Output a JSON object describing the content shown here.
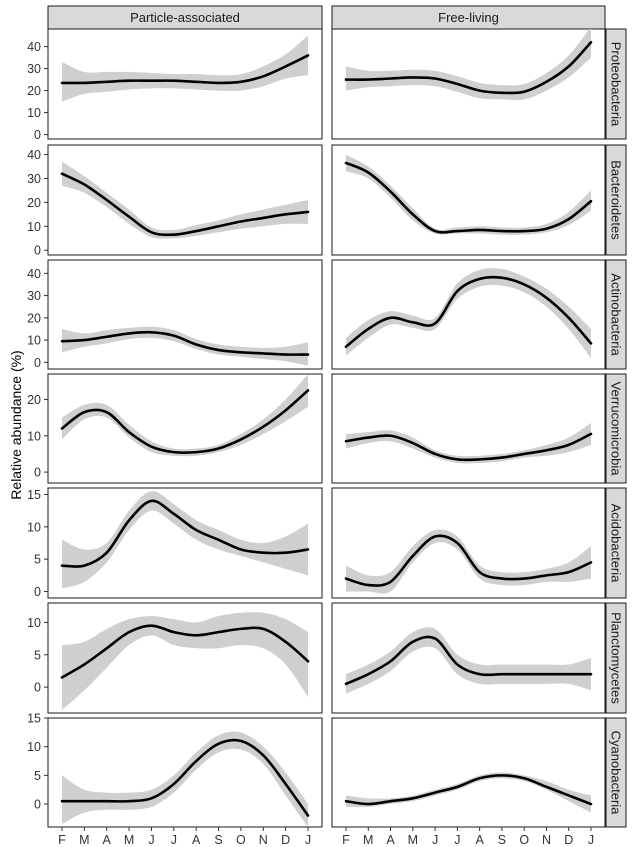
{
  "chart_data": {
    "type": "line",
    "ylabel": "Relative abundance (%)",
    "xlabel": "",
    "columns": [
      "Particle-associated",
      "Free-living"
    ],
    "months": [
      "F",
      "M",
      "A",
      "M",
      "J",
      "J",
      "A",
      "S",
      "O",
      "N",
      "D",
      "J"
    ],
    "grid": false,
    "band": "confidence interval shown as grey ribbon",
    "rows": [
      {
        "name": "Proteobacteria",
        "ylim": [
          -2,
          48
        ],
        "yticks": [
          0,
          10,
          20,
          30,
          40
        ],
        "series": [
          {
            "column": "Particle-associated",
            "values": [
              23.5,
              23.5,
              24,
              24.5,
              24.5,
              24.5,
              24,
              23.5,
              24,
              26.5,
              31,
              36
            ],
            "lower": [
              15,
              18.5,
              19.5,
              20.5,
              21,
              21,
              20.5,
              20,
              20,
              22,
              25.5,
              27
            ],
            "upper": [
              33,
              28.5,
              28.5,
              28.5,
              28,
              27.5,
              27.5,
              27,
              27.5,
              31,
              36.5,
              45
            ]
          },
          {
            "column": "Free-living",
            "values": [
              25,
              25,
              25.5,
              26,
              25.5,
              23,
              20,
              19,
              19.5,
              24,
              31,
              42
            ],
            "lower": [
              20,
              21.5,
              22,
              22.5,
              22,
              19.5,
              16.5,
              16,
              16,
              20,
              26,
              35
            ],
            "upper": [
              31,
              29,
              29,
              29.5,
              29,
              26.5,
              23.5,
              22.5,
              23,
              28,
              36,
              49
            ]
          }
        ]
      },
      {
        "name": "Bacteroidetes",
        "ylim": [
          -2,
          44
        ],
        "yticks": [
          0,
          10,
          20,
          30,
          40
        ],
        "series": [
          {
            "column": "Particle-associated",
            "values": [
              32,
              27.5,
              21,
              14,
              7.5,
              6.5,
              8,
              10,
              12,
              13.5,
              15,
              16
            ],
            "lower": [
              27,
              24,
              18,
              11,
              5.5,
              5,
              6,
              7.5,
              9,
              10,
              11,
              11
            ],
            "upper": [
              37,
              31,
              24,
              17,
              9.5,
              8.5,
              10.5,
              12.5,
              15,
              17,
              19,
              21
            ]
          },
          {
            "column": "Free-living",
            "values": [
              36.5,
              32.5,
              24.5,
              15,
              8,
              8,
              8.5,
              8,
              8,
              9,
              13,
              20.5
            ],
            "lower": [
              33,
              30,
              22,
              12.5,
              7,
              7,
              7,
              6.5,
              6.5,
              7.5,
              10.5,
              16.5
            ],
            "upper": [
              40,
              35,
              27,
              17.5,
              9,
              9.5,
              10,
              9.5,
              9.5,
              11,
              16,
              25
            ]
          }
        ]
      },
      {
        "name": "Actinobacteria",
        "ylim": [
          -3,
          46
        ],
        "yticks": [
          0,
          10,
          20,
          30,
          40
        ],
        "series": [
          {
            "column": "Particle-associated",
            "values": [
              9.5,
              10,
              11.5,
              13,
              13.5,
              12,
              8,
              5.5,
              4.5,
              4,
              3.5,
              3.5
            ],
            "lower": [
              4.5,
              7,
              8.5,
              10.5,
              11,
              9.5,
              6,
              3.5,
              2.5,
              1.5,
              0.5,
              -1.5
            ],
            "upper": [
              15,
              13,
              14.5,
              15.5,
              16,
              14.5,
              10.5,
              8,
              7,
              6.5,
              7,
              9
            ]
          },
          {
            "column": "Free-living",
            "values": [
              7,
              15,
              20,
              18,
              17.5,
              32,
              37.5,
              38,
              35,
              29,
              20,
              8.5
            ],
            "lower": [
              3,
              11,
              17,
              15.5,
              15,
              28.5,
              34,
              34.5,
              31.5,
              25,
              15,
              2
            ],
            "upper": [
              11,
              19,
              23,
              21,
              20,
              35.5,
              41.5,
              42,
              38.5,
              33,
              25,
              15
            ]
          }
        ]
      },
      {
        "name": "Verrucomicrobia",
        "ylim": [
          -3,
          27
        ],
        "yticks": [
          0,
          10,
          20
        ],
        "series": [
          {
            "column": "Particle-associated",
            "values": [
              12,
              16.5,
              16.5,
              11,
              7,
              5.5,
              5.5,
              6.5,
              9,
              12.5,
              17,
              22.5
            ],
            "lower": [
              9,
              14.5,
              15,
              9.5,
              5.5,
              4.5,
              4.5,
              5.5,
              7.5,
              10.5,
              14,
              18
            ],
            "upper": [
              15,
              18.5,
              18.5,
              13,
              8.5,
              6.5,
              6.5,
              7.5,
              10.5,
              14.5,
              20,
              27
            ]
          },
          {
            "column": "Free-living",
            "values": [
              8.5,
              9.5,
              10,
              8,
              5,
              3.5,
              3.5,
              4,
              5,
              6,
              7.5,
              10.5
            ],
            "lower": [
              6.5,
              8,
              8.5,
              6.5,
              4,
              2.5,
              2.5,
              3,
              4,
              4.5,
              5.5,
              7.5
            ],
            "upper": [
              10.5,
              11,
              11.5,
              9.5,
              6,
              4.5,
              4.5,
              5,
              6,
              7.5,
              9.5,
              13.5
            ]
          }
        ]
      },
      {
        "name": "Acidobacteria",
        "ylim": [
          -1,
          16
        ],
        "yticks": [
          0,
          5,
          10,
          15
        ],
        "series": [
          {
            "column": "Particle-associated",
            "values": [
              4,
              4,
              6,
              11,
              14,
              12,
              9.5,
              8,
              6.5,
              6,
              6,
              6.5
            ],
            "lower": [
              0.5,
              1.5,
              4.5,
              9.5,
              12.5,
              10.5,
              8,
              6.5,
              5.5,
              4.5,
              3.5,
              2.5
            ],
            "upper": [
              8,
              6.5,
              7.5,
              12.5,
              15.5,
              13.5,
              11,
              9.5,
              8,
              7.5,
              8.5,
              10.5
            ]
          },
          {
            "column": "Free-living",
            "values": [
              2,
              1,
              1.5,
              5.5,
              8.5,
              7.5,
              3,
              2,
              2,
              2.5,
              3,
              4.5
            ],
            "lower": [
              0,
              0,
              0,
              4.5,
              7.5,
              6.5,
              2,
              1,
              1,
              1.5,
              1.5,
              2
            ],
            "upper": [
              4,
              2.5,
              3,
              7,
              9.5,
              8.5,
              4,
              3,
              3,
              3.5,
              4.5,
              7
            ]
          }
        ]
      },
      {
        "name": "Planctomycetes",
        "ylim": [
          -4,
          13
        ],
        "yticks": [
          0,
          5,
          10
        ],
        "series": [
          {
            "column": "Particle-associated",
            "values": [
              1.5,
              3.5,
              6,
              8.5,
              9.5,
              8.5,
              8,
              8.5,
              9,
              9,
              7,
              4
            ],
            "lower": [
              -3.5,
              -0.5,
              3,
              6.5,
              8,
              6.5,
              6,
              6,
              6.5,
              6,
              3.5,
              -1.5
            ],
            "upper": [
              6.5,
              7,
              9,
              10.5,
              11,
              10.5,
              10,
              11,
              11.5,
              11.5,
              10.5,
              8.5
            ]
          },
          {
            "column": "Free-living",
            "values": [
              0.5,
              2,
              4,
              7,
              7.5,
              3.5,
              2,
              2,
              2,
              2,
              2,
              2
            ],
            "lower": [
              -1,
              0.5,
              2.5,
              5.5,
              6,
              2,
              0.5,
              0.5,
              0.5,
              0.5,
              0.5,
              -0.5
            ],
            "upper": [
              2,
              3.5,
              5.5,
              8.5,
              9,
              5,
              3.5,
              3.5,
              3.5,
              3.5,
              3.5,
              4.5
            ]
          }
        ]
      },
      {
        "name": "Cyanobacteria",
        "ylim": [
          -4,
          15
        ],
        "yticks": [
          0,
          5,
          10,
          15
        ],
        "series": [
          {
            "column": "Particle-associated",
            "values": [
              0.5,
              0.5,
              0.5,
              0.5,
              1,
              3.5,
              7.5,
              10.5,
              11,
              8.5,
              3.5,
              -2
            ],
            "lower": [
              -3.5,
              -1.5,
              -1,
              -1,
              -0.5,
              2,
              6,
              9,
              9.5,
              7,
              1.5,
              -4
            ],
            "upper": [
              5,
              2.5,
              2,
              2,
              2.5,
              5,
              9,
              12,
              12.5,
              10,
              5.5,
              0
            ]
          },
          {
            "column": "Free-living",
            "values": [
              0.5,
              0,
              0.5,
              1,
              2,
              3,
              4.5,
              5,
              4.5,
              3,
              1.5,
              0
            ],
            "lower": [
              -0.5,
              -0.5,
              0,
              0.5,
              1.5,
              2.5,
              4,
              4.5,
              4,
              2.5,
              0.5,
              -1.5
            ],
            "upper": [
              1.5,
              1,
              1,
              1.5,
              2.5,
              3.5,
              5,
              5.5,
              5,
              4,
              2.5,
              1.5
            ]
          }
        ]
      }
    ]
  }
}
